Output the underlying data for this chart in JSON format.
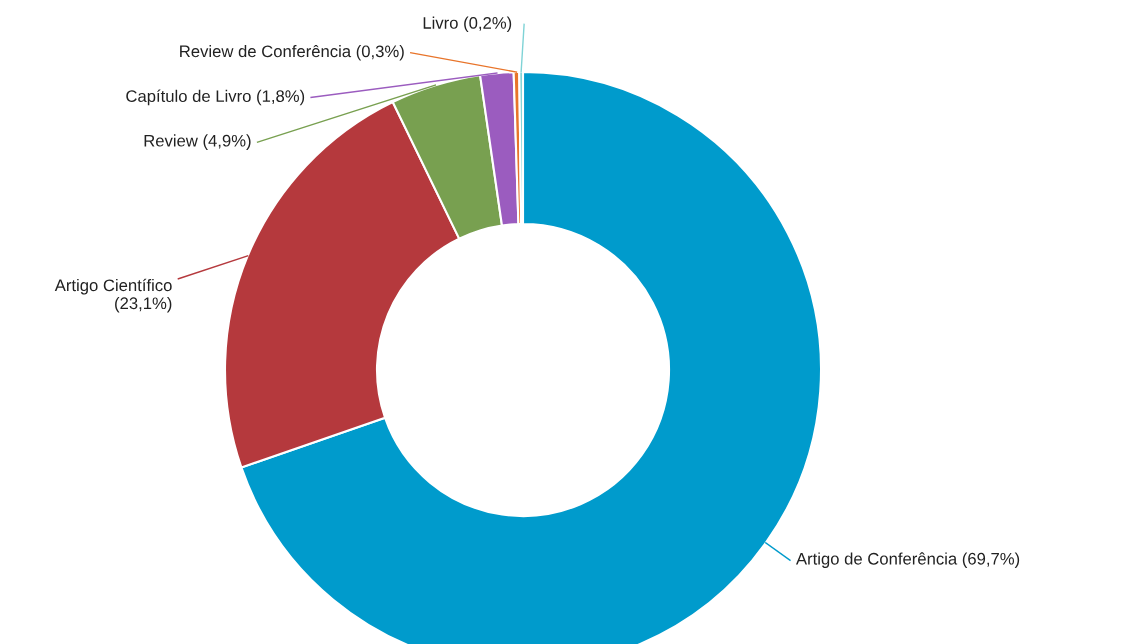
{
  "chart_data": {
    "type": "donut",
    "categories": [
      "Artigo de Conferência",
      "Artigo Científico",
      "Review",
      "Capítulo de Livro",
      "Review de Conferência",
      "Livro"
    ],
    "values": [
      69.7,
      23.1,
      4.9,
      1.8,
      0.3,
      0.2
    ],
    "value_labels": [
      "(69,7%)",
      "(23,1%)",
      "(4,9%)",
      "(1,8%)",
      "(0,3%)",
      "(0,2%)"
    ],
    "colors": [
      "#009bcc",
      "#b5393d",
      "#78a050",
      "#9b5cbf",
      "#e8742a",
      "#7fd3d6"
    ],
    "legend": false
  }
}
